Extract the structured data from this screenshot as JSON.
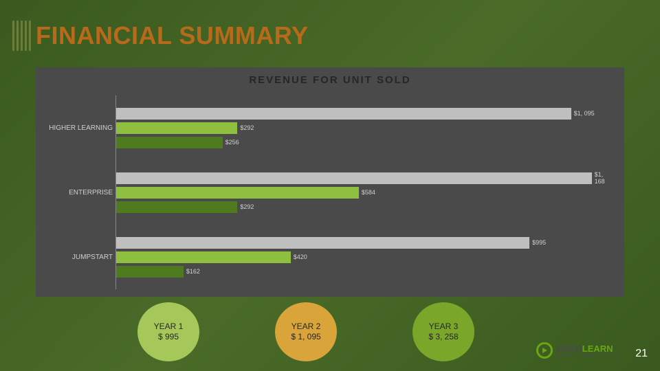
{
  "title": {
    "text": "FINANCIAL SUMMARY",
    "color": "#b86a1a",
    "fontsize": 36
  },
  "chart": {
    "type": "bar-horizontal-grouped",
    "title": "REVENUE FOR UNIT SOLD",
    "panel_bg": "#4a4a4a",
    "axis_color": "#888888",
    "label_color": "#d0d0d0",
    "label_fontsize": 10,
    "value_fontsize": 9,
    "xlim_max": 1200,
    "categories": [
      "HIGHER LEARNING",
      "ENTERPRISE",
      "JUMPSTART"
    ],
    "series": [
      {
        "name": "s3",
        "color": "#bfbfbf"
      },
      {
        "name": "s2",
        "color": "#8fbf3f"
      },
      {
        "name": "s1",
        "color": "#4f7a1f"
      }
    ],
    "data": {
      "HIGHER LEARNING": {
        "s3": {
          "v": 1095,
          "label": "$1, 095"
        },
        "s2": {
          "v": 292,
          "label": "$292"
        },
        "s1": {
          "v": 256,
          "label": "$256"
        }
      },
      "ENTERPRISE": {
        "s3": {
          "v": 1168,
          "label": "$1, 168"
        },
        "s2": {
          "v": 584,
          "label": "$584"
        },
        "s1": {
          "v": 292,
          "label": "$292"
        }
      },
      "JUMPSTART": {
        "s3": {
          "v": 995,
          "label": "$995"
        },
        "s2": {
          "v": 420,
          "label": "$420"
        },
        "s1": {
          "v": 162,
          "label": "$162"
        }
      }
    }
  },
  "circles": [
    {
      "line1": "YEAR 1",
      "line2": "$ 995",
      "bg": "#a6c85a"
    },
    {
      "line1": "YEAR 2",
      "line2": "$ 1, 095",
      "bg": "#d9a43a"
    },
    {
      "line1": "YEAR 3",
      "line2": "$ 3, 258",
      "bg": "#7aa62a"
    }
  ],
  "logo": {
    "open": "OPEN",
    "open_color": "#4a4a4a",
    "learn": "LEARN",
    "learn_color": "#6aa514",
    "tagline": "LEARN ANYWHERE, ANYTIME",
    "tagline_color": "#4a4a4a"
  },
  "page_number": "21"
}
